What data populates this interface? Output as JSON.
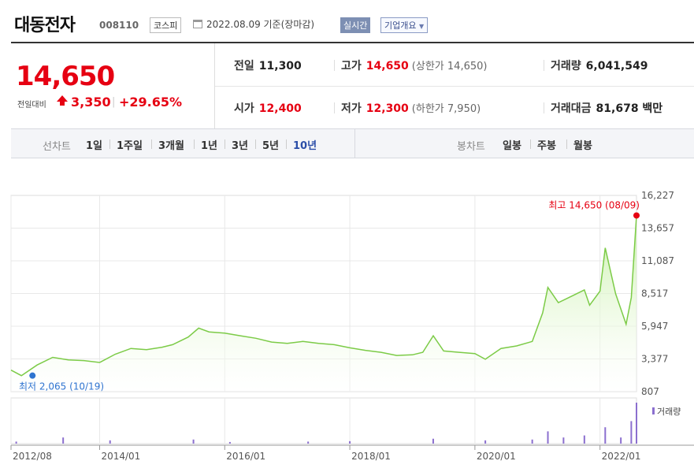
{
  "header": {
    "stock_name": "대동전자",
    "stock_code": "008110",
    "market": "코스피",
    "date": "2022.08.09 기준(장마감)",
    "realtime_label": "실시간",
    "company_label": "기업개요"
  },
  "price": {
    "current": "14,650",
    "change_label": "전일대비",
    "change": "3,350",
    "change_pct": "+29.65%",
    "colors": {
      "up": "#e60012",
      "accent": "#2b4ea8"
    }
  },
  "info": {
    "prev_close_label": "전일",
    "prev_close": "11,300",
    "high_label": "고가",
    "high": "14,650",
    "upper_limit_label": "상한가",
    "upper_limit": "14,650",
    "volume_label": "거래량",
    "volume": "6,041,549",
    "open_label": "시가",
    "open": "12,400",
    "low_label": "저가",
    "low": "12,300",
    "lower_limit_label": "하한가",
    "lower_limit": "7,950",
    "amount_label": "거래대금",
    "amount": "81,678 백만"
  },
  "tabs": {
    "line_title": "선차트",
    "line_items": [
      "1일",
      "1주일",
      "3개월",
      "1년",
      "3년",
      "5년",
      "10년"
    ],
    "active": "10년",
    "candle_title": "봉차트",
    "candle_items": [
      "일봉",
      "주봉",
      "월봉"
    ]
  },
  "chart_data": {
    "type": "area",
    "period": "10년",
    "y_ticks": [
      "16,227",
      "13,657",
      "11,087",
      "8,517",
      "5,947",
      "3,377",
      "807"
    ],
    "ylim": [
      807,
      16227
    ],
    "x_ticks": [
      "2012/08",
      "2014/01",
      "2016/01",
      "2018/01",
      "2020/01",
      "2022/01"
    ],
    "x_range": [
      "2012/08",
      "2022/08"
    ],
    "max_annotation": "최고 14,650 (08/09)",
    "min_annotation": "최저 2,065 (10/19)",
    "volume_label": "거래량",
    "series": [
      {
        "values": [
          [
            "2012/08",
            2500
          ],
          [
            "2012/10",
            2065
          ],
          [
            "2013/01",
            2900
          ],
          [
            "2013/04",
            3500
          ],
          [
            "2013/07",
            3300
          ],
          [
            "2013/10",
            3250
          ],
          [
            "2014/01",
            3100
          ],
          [
            "2014/04",
            3750
          ],
          [
            "2014/07",
            4200
          ],
          [
            "2014/10",
            4100
          ],
          [
            "2015/01",
            4300
          ],
          [
            "2015/03",
            4500
          ],
          [
            "2015/06",
            5100
          ],
          [
            "2015/08",
            5800
          ],
          [
            "2015/10",
            5500
          ],
          [
            "2016/01",
            5400
          ],
          [
            "2016/04",
            5200
          ],
          [
            "2016/07",
            5000
          ],
          [
            "2016/10",
            4700
          ],
          [
            "2017/01",
            4600
          ],
          [
            "2017/04",
            4750
          ],
          [
            "2017/07",
            4600
          ],
          [
            "2017/10",
            4500
          ],
          [
            "2018/01",
            4250
          ],
          [
            "2018/04",
            4050
          ],
          [
            "2018/07",
            3900
          ],
          [
            "2018/10",
            3650
          ],
          [
            "2019/01",
            3700
          ],
          [
            "2019/03",
            3900
          ],
          [
            "2019/05",
            5200
          ],
          [
            "2019/07",
            4000
          ],
          [
            "2019/10",
            3900
          ],
          [
            "2020/01",
            3800
          ],
          [
            "2020/03",
            3350
          ],
          [
            "2020/06",
            4200
          ],
          [
            "2020/09",
            4400
          ],
          [
            "2020/12",
            4750
          ],
          [
            "2021/02",
            7000
          ],
          [
            "2021/03",
            9000
          ],
          [
            "2021/05",
            7800
          ],
          [
            "2021/08",
            8400
          ],
          [
            "2021/10",
            8800
          ],
          [
            "2021/11",
            7600
          ],
          [
            "2022/01",
            8700
          ],
          [
            "2022/02",
            12100
          ],
          [
            "2022/04",
            8500
          ],
          [
            "2022/06",
            6100
          ],
          [
            "2022/07",
            8200
          ],
          [
            "2022/08",
            14650
          ]
        ]
      }
    ],
    "volume": [
      [
        "2012/09",
        0.05
      ],
      [
        "2013/06",
        0.15
      ],
      [
        "2014/03",
        0.08
      ],
      [
        "2015/07",
        0.1
      ],
      [
        "2016/02",
        0.04
      ],
      [
        "2017/05",
        0.05
      ],
      [
        "2018/01",
        0.06
      ],
      [
        "2019/05",
        0.12
      ],
      [
        "2020/03",
        0.08
      ],
      [
        "2020/12",
        0.1
      ],
      [
        "2021/03",
        0.3
      ],
      [
        "2021/06",
        0.15
      ],
      [
        "2021/10",
        0.2
      ],
      [
        "2022/02",
        0.4
      ],
      [
        "2022/05",
        0.15
      ],
      [
        "2022/07",
        0.55
      ],
      [
        "2022/08",
        1.0
      ]
    ],
    "colors": {
      "line": "#7ccb47",
      "fill_top": "#c8f0a8",
      "fill_bottom": "#ffffff",
      "max_dot": "#e60012",
      "min_dot": "#2f74d0",
      "volume": "#8b6fcf",
      "grid": "#e8e8e8"
    }
  }
}
